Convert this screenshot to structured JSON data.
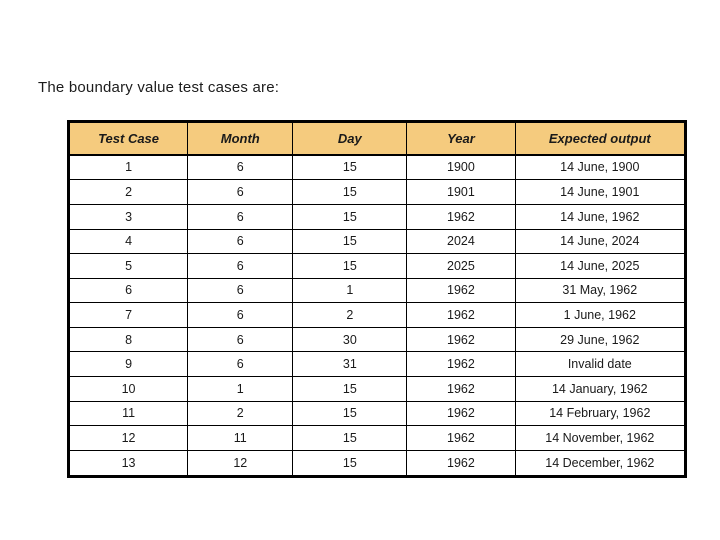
{
  "page": {
    "title": "The boundary value test cases are:"
  },
  "table": {
    "columns": [
      "Test Case",
      "Month",
      "Day",
      "Year",
      "Expected output"
    ],
    "rows": [
      [
        "1",
        "6",
        "15",
        "1900",
        "14 June, 1900"
      ],
      [
        "2",
        "6",
        "15",
        "1901",
        "14 June, 1901"
      ],
      [
        "3",
        "6",
        "15",
        "1962",
        "14 June, 1962"
      ],
      [
        "4",
        "6",
        "15",
        "2024",
        "14 June, 2024"
      ],
      [
        "5",
        "6",
        "15",
        "2025",
        "14 June, 2025"
      ],
      [
        "6",
        "6",
        "1",
        "1962",
        "31 May, 1962"
      ],
      [
        "7",
        "6",
        "2",
        "1962",
        "1 June, 1962"
      ],
      [
        "8",
        "6",
        "30",
        "1962",
        "29 June, 1962"
      ],
      [
        "9",
        "6",
        "31",
        "1962",
        "Invalid date"
      ],
      [
        "10",
        "1",
        "15",
        "1962",
        "14 January, 1962"
      ],
      [
        "11",
        "2",
        "15",
        "1962",
        "14 February, 1962"
      ],
      [
        "12",
        "11",
        "15",
        "1962",
        "14 November, 1962"
      ],
      [
        "13",
        "12",
        "15",
        "1962",
        "14 December, 1962"
      ]
    ],
    "colors": {
      "header_bg": "#F5CB7E",
      "border": "#000000",
      "text": "#1a1a1a"
    }
  }
}
